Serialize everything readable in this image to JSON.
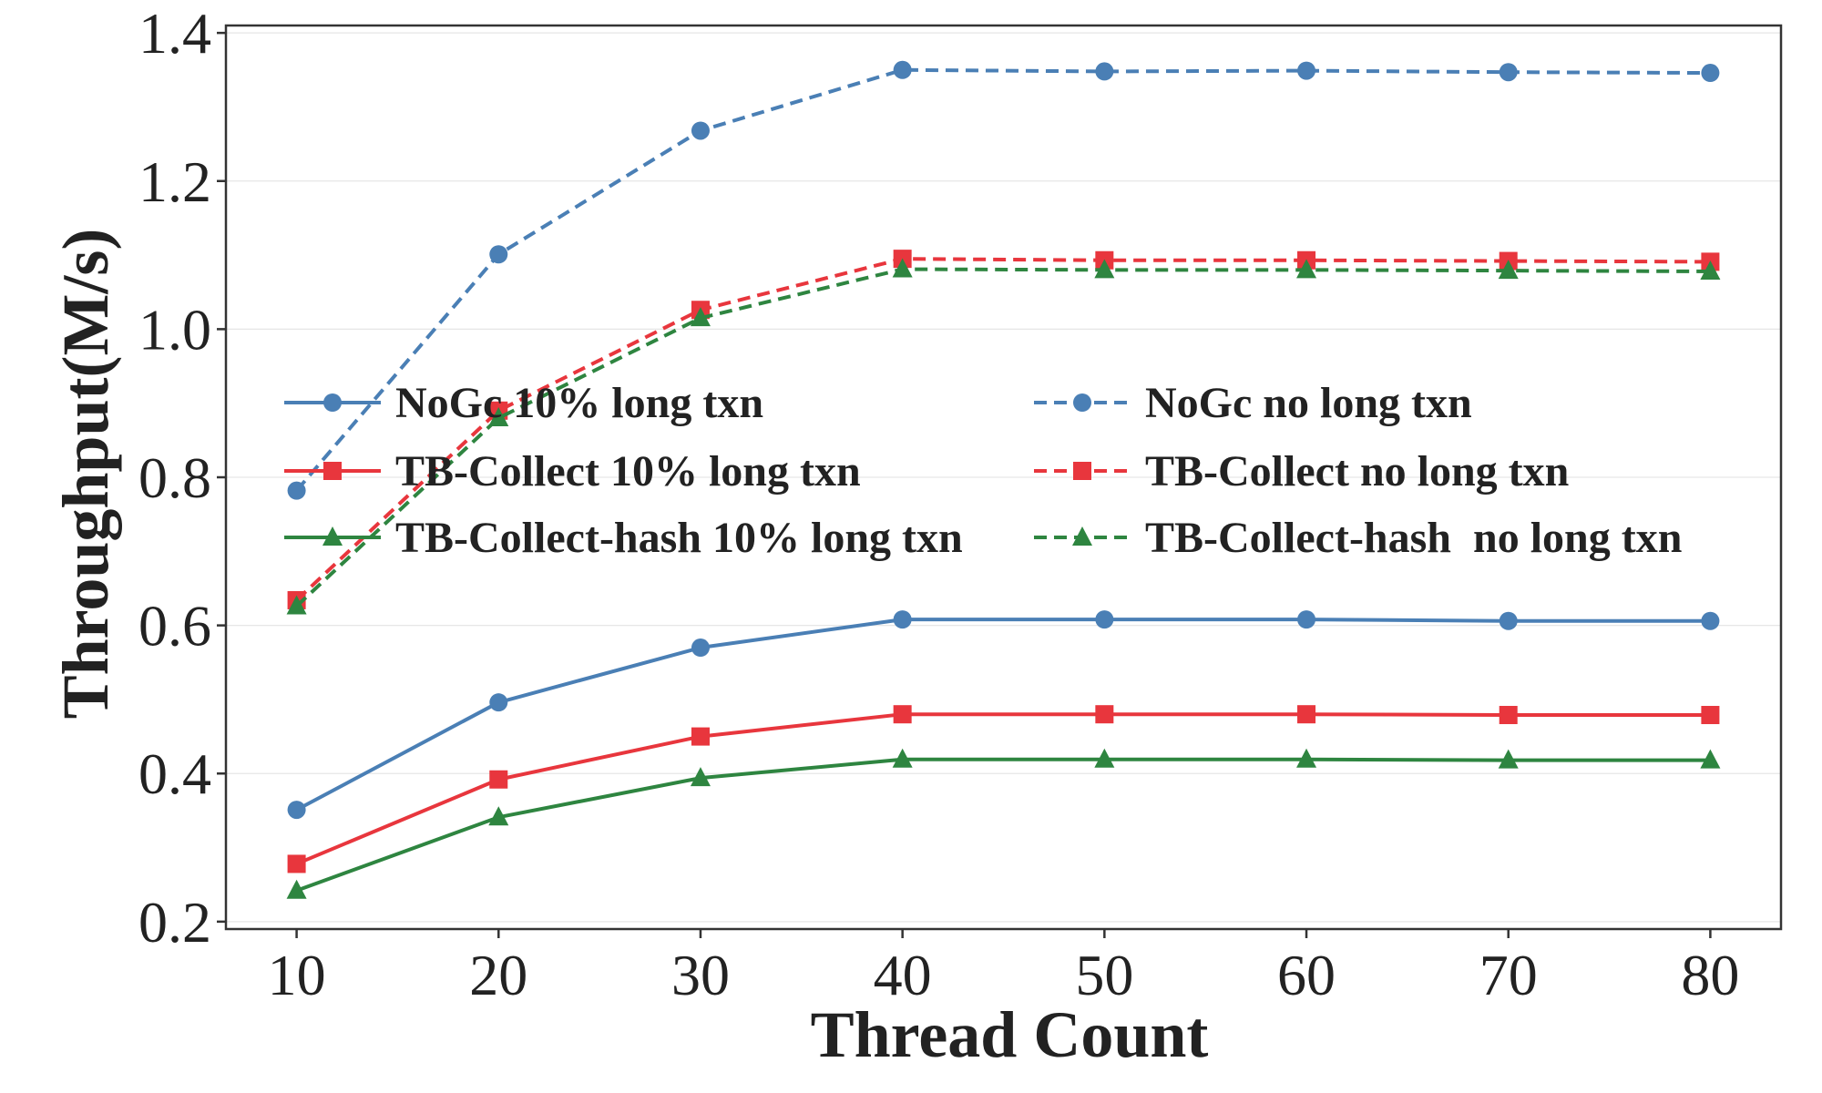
{
  "chart_data": {
    "type": "line",
    "title": "",
    "xlabel": "Thread Count",
    "ylabel": "Throughput(M/s)",
    "x": [
      10,
      20,
      30,
      40,
      50,
      60,
      70,
      80
    ],
    "xlim": [
      6.5,
      83.5
    ],
    "ylim": [
      0.19,
      1.41
    ],
    "yticks": [
      0.2,
      0.4,
      0.6,
      0.8,
      1.0,
      1.2,
      1.4
    ],
    "ytick_labels": [
      "0.2",
      "0.4",
      "0.6",
      "0.8",
      "1.0",
      "1.2",
      "1.4"
    ],
    "xtick_labels": [
      "10",
      "20",
      "30",
      "40",
      "50",
      "60",
      "70",
      "80"
    ],
    "grid": "horizontal",
    "legend_placement": "center-left, two columns",
    "series": [
      {
        "name": "NoGc 10% long txn",
        "values": [
          0.351,
          0.496,
          0.57,
          0.608,
          0.608,
          0.608,
          0.606,
          0.606
        ],
        "color": "#4a7fb5",
        "linestyle": "solid",
        "marker": "circle"
      },
      {
        "name": "TB-Collect 10% long txn",
        "values": [
          0.278,
          0.392,
          0.45,
          0.48,
          0.48,
          0.48,
          0.479,
          0.479
        ],
        "color": "#e8363d",
        "linestyle": "solid",
        "marker": "square"
      },
      {
        "name": "TB-Collect-hash 10% long txn",
        "values": [
          0.242,
          0.341,
          0.394,
          0.419,
          0.419,
          0.419,
          0.418,
          0.418
        ],
        "color": "#2e8540",
        "linestyle": "solid",
        "marker": "triangle"
      },
      {
        "name": "NoGc no long txn",
        "values": [
          0.782,
          1.101,
          1.268,
          1.35,
          1.348,
          1.349,
          1.347,
          1.346
        ],
        "color": "#4a7fb5",
        "linestyle": "dashed",
        "marker": "circle"
      },
      {
        "name": "TB-Collect no long txn",
        "values": [
          0.634,
          0.89,
          1.026,
          1.095,
          1.093,
          1.093,
          1.092,
          1.091
        ],
        "color": "#e8363d",
        "linestyle": "dashed",
        "marker": "square"
      },
      {
        "name": "TB-Collect-hash  no long txn",
        "values": [
          0.626,
          0.88,
          1.015,
          1.081,
          1.08,
          1.08,
          1.079,
          1.078
        ],
        "color": "#2e8540",
        "linestyle": "dashed",
        "marker": "triangle"
      }
    ]
  }
}
